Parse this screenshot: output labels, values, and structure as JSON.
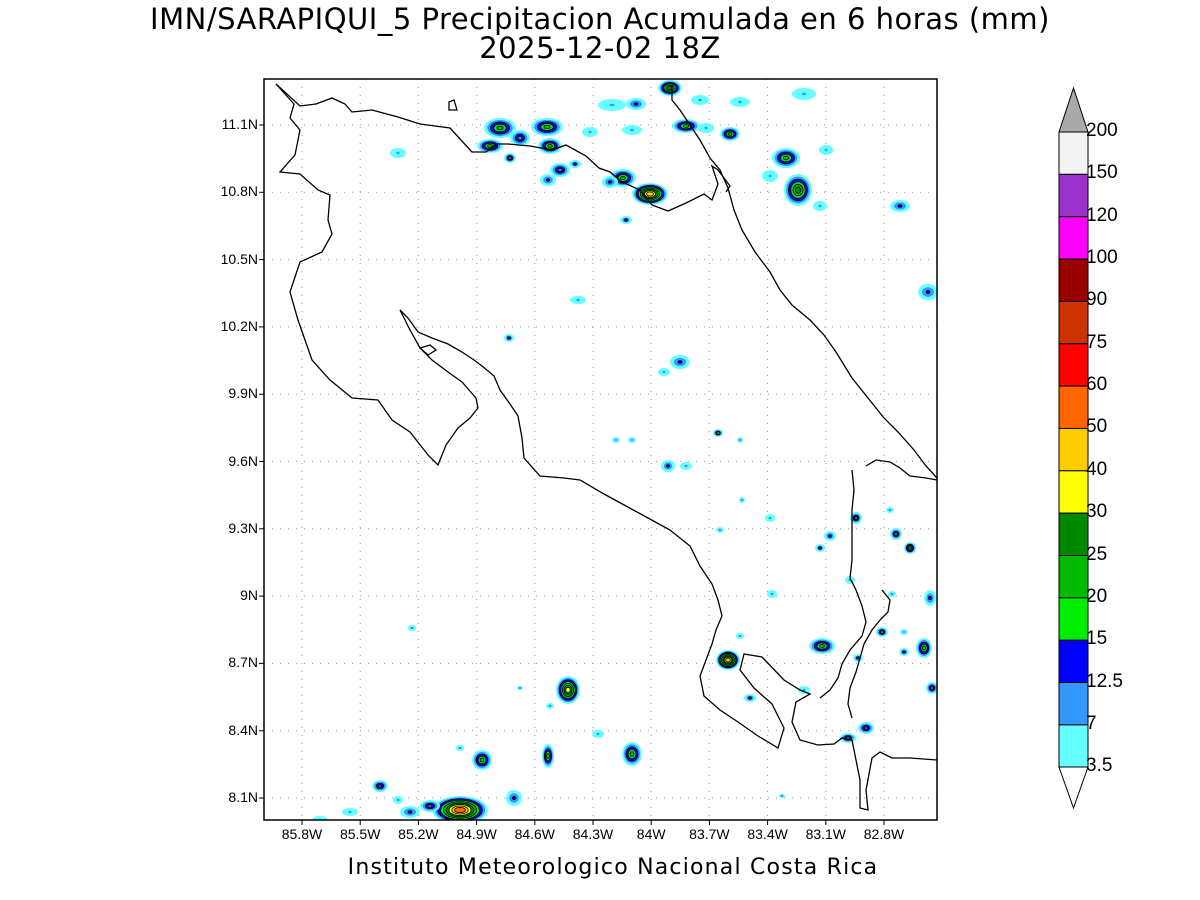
{
  "title": {
    "line1": "IMN/SARAPIQUI_5 Precipitacion Acumulada en 6 horas (mm)",
    "line2": "2025-12-02 18Z"
  },
  "footer": "Instituto Meteorologico Nacional Costa Rica",
  "lat_labels": [
    "11.1N",
    "10.8N",
    "10.5N",
    "10.2N",
    "9.9N",
    "9.6N",
    "9.3N",
    "9N",
    "8.7N",
    "8.4N",
    "8.1N"
  ],
  "lon_labels": [
    "85.8W",
    "85.5W",
    "85.2W",
    "84.9W",
    "84.6W",
    "84.3W",
    "84W",
    "83.7W",
    "83.4W",
    "83.1W",
    "82.8W"
  ],
  "colorbar": {
    "labels": [
      "200",
      "150",
      "120",
      "100",
      "90",
      "75",
      "60",
      "50",
      "40",
      "30",
      "25",
      "20",
      "15",
      "12.5",
      "7",
      "3.5"
    ],
    "colors": [
      "#f2f2f2",
      "#9933cc",
      "#ff00ff",
      "#990000",
      "#cc3300",
      "#ff0000",
      "#ff6600",
      "#ffcc00",
      "#ffff00",
      "#008800",
      "#00bb00",
      "#00ee00",
      "#0000ff",
      "#3399ff",
      "#66ffff"
    ],
    "triangle_top_color": "#aaaaaa",
    "triangle_bottom_color": "#ffffff"
  },
  "colors": {
    "coastline": "#000000",
    "grid": "#999999"
  }
}
